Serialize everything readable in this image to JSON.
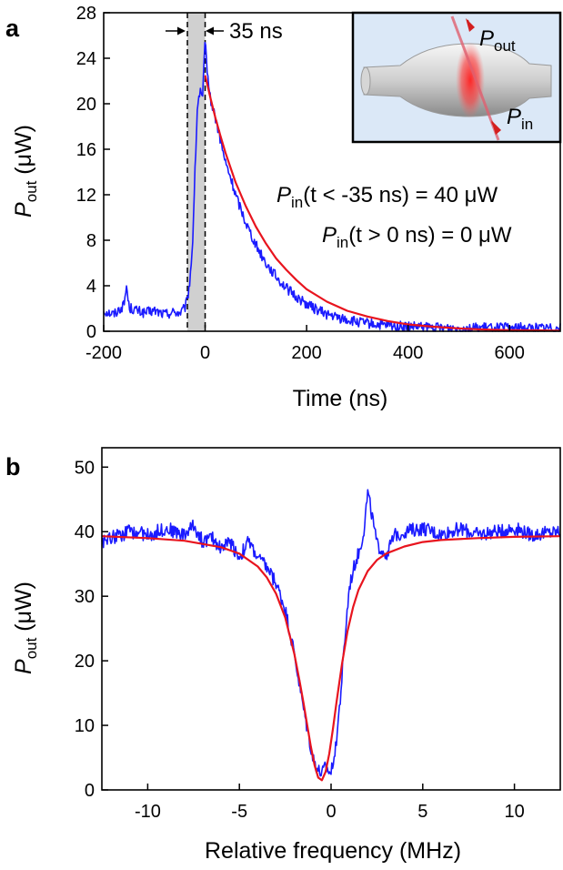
{
  "chart_data": [
    {
      "panel": "a",
      "type": "line",
      "xlabel": "Time (ns)",
      "ylabel": {
        "main": "P",
        "sub": "out",
        "unit": " (μW)"
      },
      "xlim": [
        -200,
        700
      ],
      "ylim": [
        0,
        28
      ],
      "xticks": [
        -200,
        0,
        200,
        400,
        600
      ],
      "yticks": [
        0,
        4,
        8,
        12,
        16,
        20,
        24,
        28
      ],
      "shaded_region": [
        -35,
        0
      ],
      "series": [
        {
          "kind": "measured",
          "color": "#1a1aff",
          "x": [
            -200,
            -180,
            -160,
            -155,
            -150,
            -140,
            -120,
            -100,
            -80,
            -60,
            -50,
            -40,
            -35,
            -30,
            -25,
            -20,
            -15,
            -10,
            -5,
            0,
            5,
            10,
            20,
            30,
            40,
            50,
            60,
            70,
            80,
            90,
            100,
            120,
            140,
            160,
            180,
            200,
            220,
            240,
            260,
            280,
            300,
            350,
            400,
            450,
            500,
            550,
            600,
            650,
            700
          ],
          "y": [
            1.8,
            1.5,
            2.3,
            4.0,
            2.1,
            1.9,
            1.6,
            1.8,
            1.5,
            1.7,
            1.6,
            2.0,
            2.8,
            4.5,
            7.5,
            14.0,
            20.0,
            21.0,
            20.5,
            25.5,
            22.5,
            20.5,
            18.8,
            16.8,
            14.8,
            13.5,
            12.0,
            10.8,
            9.6,
            8.6,
            7.6,
            6.0,
            4.8,
            3.8,
            3.0,
            2.4,
            1.9,
            1.5,
            1.2,
            1.0,
            0.8,
            0.5,
            0.4,
            0.3,
            0.3,
            0.3,
            0.3,
            0.3,
            0.3
          ]
        },
        {
          "kind": "fit",
          "color": "#e8141e",
          "x": [
            0,
            10,
            20,
            30,
            40,
            50,
            60,
            80,
            100,
            120,
            140,
            160,
            180,
            200,
            240,
            280,
            320,
            360,
            400,
            450,
            500,
            550,
            600,
            650,
            700
          ],
          "y": [
            22.5,
            20.6,
            18.8,
            17.2,
            15.7,
            14.4,
            13.1,
            11.0,
            9.2,
            7.7,
            6.4,
            5.4,
            4.5,
            3.7,
            2.6,
            1.8,
            1.3,
            0.9,
            0.6,
            0.4,
            0.25,
            0.15,
            0.1,
            0.08,
            0.05
          ]
        }
      ],
      "annotations": {
        "width_label": "35 ns",
        "line1": {
          "pre": "P",
          "sub": "in",
          "post": "(t < -35 ns) = 40 μW"
        },
        "line2": {
          "pre": "P",
          "sub": "in",
          "post": "(t > 0 ns) = 0 μW"
        },
        "inset_out": {
          "main": "P",
          "sub": "out"
        },
        "inset_in": {
          "main": "P",
          "sub": "in"
        }
      }
    },
    {
      "panel": "b",
      "type": "line",
      "xlabel": "Relative frequency (MHz)",
      "ylabel": {
        "main": "P",
        "sub": "out",
        "unit": " (μW)"
      },
      "xlim": [
        -12.5,
        12.5
      ],
      "ylim": [
        0,
        53
      ],
      "xticks": [
        -10,
        -5,
        0,
        5,
        10
      ],
      "yticks": [
        0,
        10,
        20,
        30,
        40,
        50
      ],
      "series": [
        {
          "kind": "measured",
          "color": "#1a1aff",
          "x": [
            -12.5,
            -11,
            -10,
            -9,
            -8,
            -7.5,
            -7,
            -6.5,
            -6,
            -5.5,
            -5,
            -4.5,
            -4,
            -3.5,
            -3,
            -2.5,
            -2,
            -1.5,
            -1.2,
            -1.0,
            -0.7,
            -0.5,
            -0.3,
            0,
            0.3,
            0.5,
            0.8,
            1.0,
            1.3,
            1.6,
            1.8,
            2.0,
            2.2,
            2.5,
            3.0,
            3.5,
            4.0,
            5.0,
            6.0,
            7.0,
            8.0,
            9.0,
            10.0,
            11.0,
            12.5
          ],
          "y": [
            38.5,
            40.0,
            39.5,
            40.5,
            39.5,
            41.0,
            38.5,
            39.0,
            37.5,
            38.5,
            36.0,
            38.5,
            36.0,
            34.5,
            32.0,
            28.0,
            21.0,
            12.5,
            8.0,
            5.0,
            3.0,
            2.5,
            3.5,
            2.5,
            8.0,
            14.0,
            25.0,
            31.5,
            35.0,
            37.5,
            40.5,
            46.0,
            43.0,
            38.0,
            36.5,
            39.5,
            40.0,
            40.5,
            39.5,
            40.5,
            39.5,
            40.0,
            40.5,
            39.5,
            40.0
          ]
        },
        {
          "kind": "fit",
          "color": "#e8141e",
          "x": [
            -12.5,
            -10,
            -8,
            -6,
            -5,
            -4,
            -3.5,
            -3,
            -2.5,
            -2,
            -1.7,
            -1.5,
            -1.3,
            -1.1,
            -0.9,
            -0.7,
            -0.5,
            -0.3,
            -0.1,
            0.1,
            0.3,
            0.6,
            0.9,
            1.2,
            1.5,
            2.0,
            2.5,
            3,
            4,
            5,
            6,
            8,
            10,
            12.5
          ],
          "y": [
            39.3,
            39.0,
            38.6,
            37.6,
            36.6,
            34.6,
            32.9,
            30.4,
            26.7,
            21.0,
            16.6,
            13.4,
            10.0,
            6.7,
            3.8,
            1.9,
            1.5,
            2.8,
            5.6,
            9.4,
            13.6,
            19.6,
            24.6,
            28.3,
            31.0,
            33.9,
            35.6,
            36.6,
            37.7,
            38.4,
            38.7,
            39.0,
            39.2,
            39.3
          ]
        }
      ]
    }
  ]
}
